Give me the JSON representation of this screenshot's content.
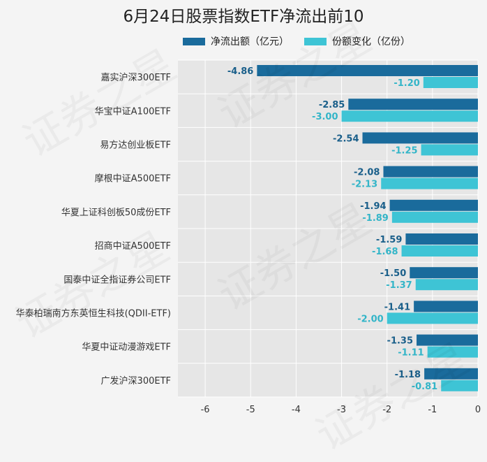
{
  "chart_data": {
    "type": "bar",
    "orientation": "horizontal",
    "title": "6月24日股票指数ETF净流出前10",
    "categories": [
      "嘉实沪深300ETF",
      "华宝中证A100ETF",
      "易方达创业板ETF",
      "摩根中证A500ETF",
      "华夏上证科创板50成份ETF",
      "招商中证A500ETF",
      "国泰中证全指证券公司ETF",
      "华泰柏瑞南方东英恒生科技(QDII-ETF)",
      "华夏中证动漫游戏ETF",
      "广发沪深300ETF"
    ],
    "series": [
      {
        "name": "净流出额（亿元）",
        "color": "#1a6b9c",
        "label_color": "#1a5f8a",
        "values": [
          -4.86,
          -2.85,
          -2.54,
          -2.08,
          -1.94,
          -1.59,
          -1.5,
          -1.41,
          -1.35,
          -1.18
        ]
      },
      {
        "name": "份额变化（亿份）",
        "color": "#3ec4d5",
        "label_color": "#33b5c8",
        "values": [
          -1.2,
          -3.0,
          -1.25,
          -2.13,
          -1.89,
          -1.68,
          -1.37,
          -2.0,
          -1.11,
          -0.81
        ]
      }
    ],
    "xlim": [
      -6.6,
      0
    ],
    "xticks": [
      -6,
      -5,
      -4,
      -3,
      -2,
      -1,
      0
    ],
    "grid": true,
    "legend_position": "top"
  },
  "watermark": "证券之星"
}
